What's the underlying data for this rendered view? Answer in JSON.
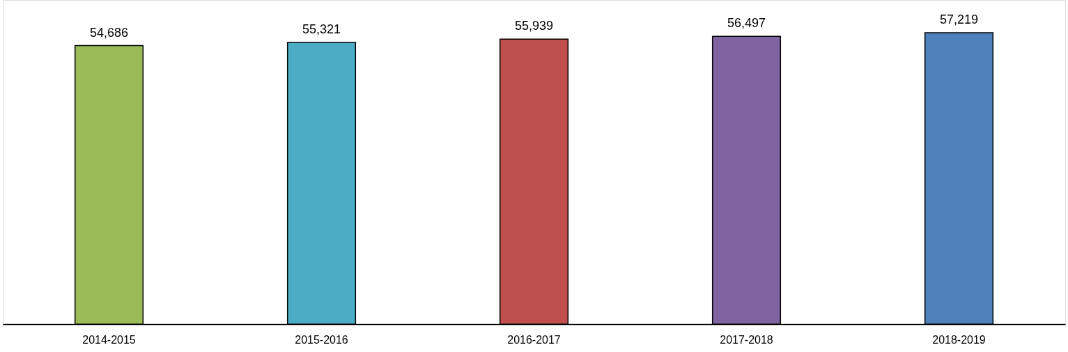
{
  "chart_data": {
    "type": "bar",
    "categories": [
      "2014-2015",
      "2015-2016",
      "2016-2017",
      "2017-2018",
      "2018-2019"
    ],
    "values": [
      54686,
      55321,
      55939,
      56497,
      57219
    ],
    "colors": [
      "#9bbb59",
      "#4bacc6",
      "#c0504d",
      "#8064a2",
      "#4f81bd"
    ],
    "value_labels": [
      "54,686",
      "55,321",
      "55,939",
      "56,497",
      "57,219"
    ],
    "grid": false,
    "legend": false,
    "tick_labels": "x"
  }
}
